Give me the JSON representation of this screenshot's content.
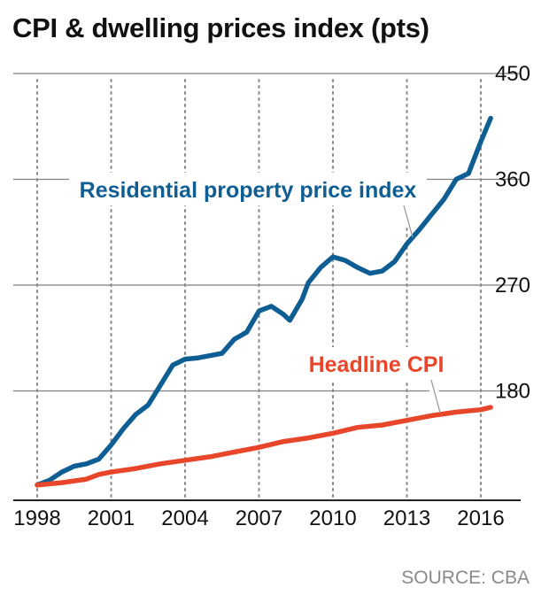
{
  "title": "CPI & dwelling prices index (pts)",
  "source": "SOURCE: CBA",
  "colors": {
    "residential": "#0e5e94",
    "cpi": "#e8462a",
    "grid": "#7f7f7f",
    "text": "#111111"
  },
  "chart_data": {
    "type": "line",
    "title": "CPI & dwelling prices index (pts)",
    "xlabel": "",
    "ylabel": "",
    "xlim": [
      1998,
      2016.5
    ],
    "ylim": [
      90,
      450
    ],
    "x_ticks": [
      "1998",
      "2001",
      "2004",
      "2007",
      "2010",
      "2013",
      "2016"
    ],
    "y_ticks": [
      "180",
      "270",
      "360",
      "450"
    ],
    "y_axis_position": "right",
    "grid": "vertical dotted at x ticks, horizontal solid at y ticks",
    "series": [
      {
        "name": "Residential property price index",
        "color": "#0e5e94",
        "points": [
          [
            1998.0,
            100
          ],
          [
            1998.5,
            104
          ],
          [
            1999.0,
            111
          ],
          [
            1999.5,
            116
          ],
          [
            2000.0,
            118
          ],
          [
            2000.5,
            122
          ],
          [
            2001.0,
            134
          ],
          [
            2001.5,
            148
          ],
          [
            2002.0,
            160
          ],
          [
            2002.5,
            168
          ],
          [
            2003.0,
            185
          ],
          [
            2003.5,
            202
          ],
          [
            2004.0,
            207
          ],
          [
            2004.5,
            208
          ],
          [
            2005.0,
            210
          ],
          [
            2005.5,
            212
          ],
          [
            2006.0,
            224
          ],
          [
            2006.5,
            230
          ],
          [
            2007.0,
            248
          ],
          [
            2007.5,
            252
          ],
          [
            2008.0,
            245
          ],
          [
            2008.25,
            240
          ],
          [
            2008.75,
            258
          ],
          [
            2009.0,
            272
          ],
          [
            2009.5,
            285
          ],
          [
            2010.0,
            294
          ],
          [
            2010.5,
            291
          ],
          [
            2011.0,
            285
          ],
          [
            2011.5,
            280
          ],
          [
            2012.0,
            282
          ],
          [
            2012.5,
            290
          ],
          [
            2013.0,
            305
          ],
          [
            2013.5,
            317
          ],
          [
            2014.0,
            330
          ],
          [
            2014.5,
            343
          ],
          [
            2015.0,
            360
          ],
          [
            2015.5,
            365
          ],
          [
            2016.0,
            392
          ],
          [
            2016.4,
            412
          ]
        ]
      },
      {
        "name": "Headline CPI",
        "color": "#e8462a",
        "points": [
          [
            1998.0,
            100
          ],
          [
            1999.0,
            102
          ],
          [
            2000.0,
            105
          ],
          [
            2000.5,
            109
          ],
          [
            2001.0,
            111
          ],
          [
            2002.0,
            114
          ],
          [
            2003.0,
            118
          ],
          [
            2004.0,
            121
          ],
          [
            2005.0,
            124
          ],
          [
            2006.0,
            128
          ],
          [
            2007.0,
            132
          ],
          [
            2008.0,
            137
          ],
          [
            2009.0,
            140
          ],
          [
            2010.0,
            144
          ],
          [
            2011.0,
            149
          ],
          [
            2012.0,
            151
          ],
          [
            2013.0,
            155
          ],
          [
            2014.0,
            159
          ],
          [
            2015.0,
            162
          ],
          [
            2016.0,
            164
          ],
          [
            2016.4,
            166
          ]
        ]
      }
    ],
    "annotations": [
      {
        "text": "Residential property price index",
        "series": "Residential property price index"
      },
      {
        "text": "Headline CPI",
        "series": "Headline CPI"
      }
    ]
  }
}
